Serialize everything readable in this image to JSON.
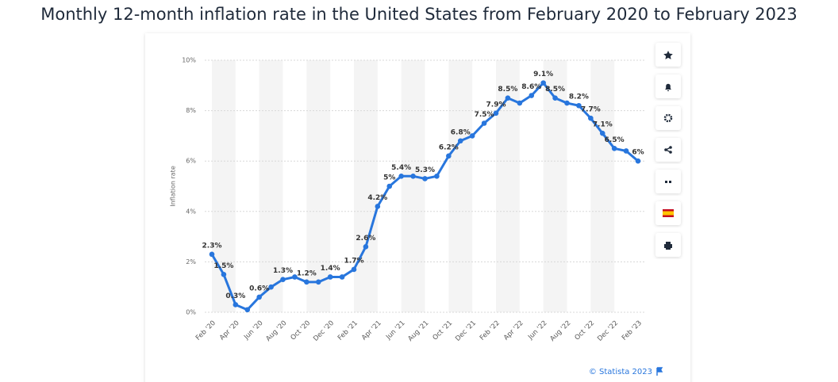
{
  "chart_data": {
    "type": "line",
    "title": "Monthly 12-month inflation rate in the United States from February 2020 to February 2023",
    "y_label": "Inflation rate",
    "source": "© Statista 2023",
    "categories": [
      "Feb '20",
      null,
      "Apr '20",
      null,
      "Jun '20",
      null,
      "Aug '20",
      null,
      "Oct '20",
      null,
      "Dec '20",
      null,
      "Feb '21",
      null,
      "Apr '21",
      null,
      "Jun '21",
      null,
      "Aug '21",
      null,
      "Oct '21",
      null,
      "Dec '21",
      null,
      "Feb '22",
      null,
      "Apr '22",
      null,
      "Jun '22",
      null,
      "Aug '22",
      null,
      "Oct '22",
      null,
      "Dec '22",
      null,
      "Feb '23"
    ],
    "series": [
      {
        "name": "Inflation rate",
        "color": "#2876dd",
        "values": [
          2.3,
          1.5,
          0.3,
          0.1,
          0.6,
          1.0,
          1.3,
          1.4,
          1.2,
          1.2,
          1.4,
          1.4,
          1.7,
          2.6,
          4.2,
          5.0,
          5.4,
          5.4,
          5.3,
          5.4,
          6.2,
          6.8,
          7.0,
          7.5,
          7.9,
          8.5,
          8.3,
          8.6,
          9.1,
          8.5,
          8.3,
          8.2,
          7.7,
          7.1,
          6.5,
          6.4,
          6.0
        ],
        "value_labels": [
          "2.3%",
          "1.5%",
          "0.3%",
          null,
          "0.6%",
          null,
          "1.3%",
          null,
          "1.2%",
          null,
          "1.4%",
          null,
          "1.7%",
          "2.6%",
          "4.2%",
          "5%",
          "5.4%",
          null,
          "5.3%",
          null,
          "6.2%",
          "6.8%",
          null,
          "7.5%",
          "7.9%",
          "8.5%",
          null,
          "8.6%",
          "9.1%",
          "8.5%",
          null,
          "8.2%",
          "7.7%",
          "7.1%",
          "6.5%",
          null,
          "6%"
        ]
      }
    ],
    "ylim": [
      0,
      10
    ],
    "yticks": [
      {
        "value": 0,
        "label": "0%"
      },
      {
        "value": 2,
        "label": "2%"
      },
      {
        "value": 4,
        "label": "4%"
      },
      {
        "value": 6,
        "label": "6%"
      },
      {
        "value": 8,
        "label": "8%"
      },
      {
        "value": 10,
        "label": "10%"
      }
    ],
    "grid": true
  }
}
